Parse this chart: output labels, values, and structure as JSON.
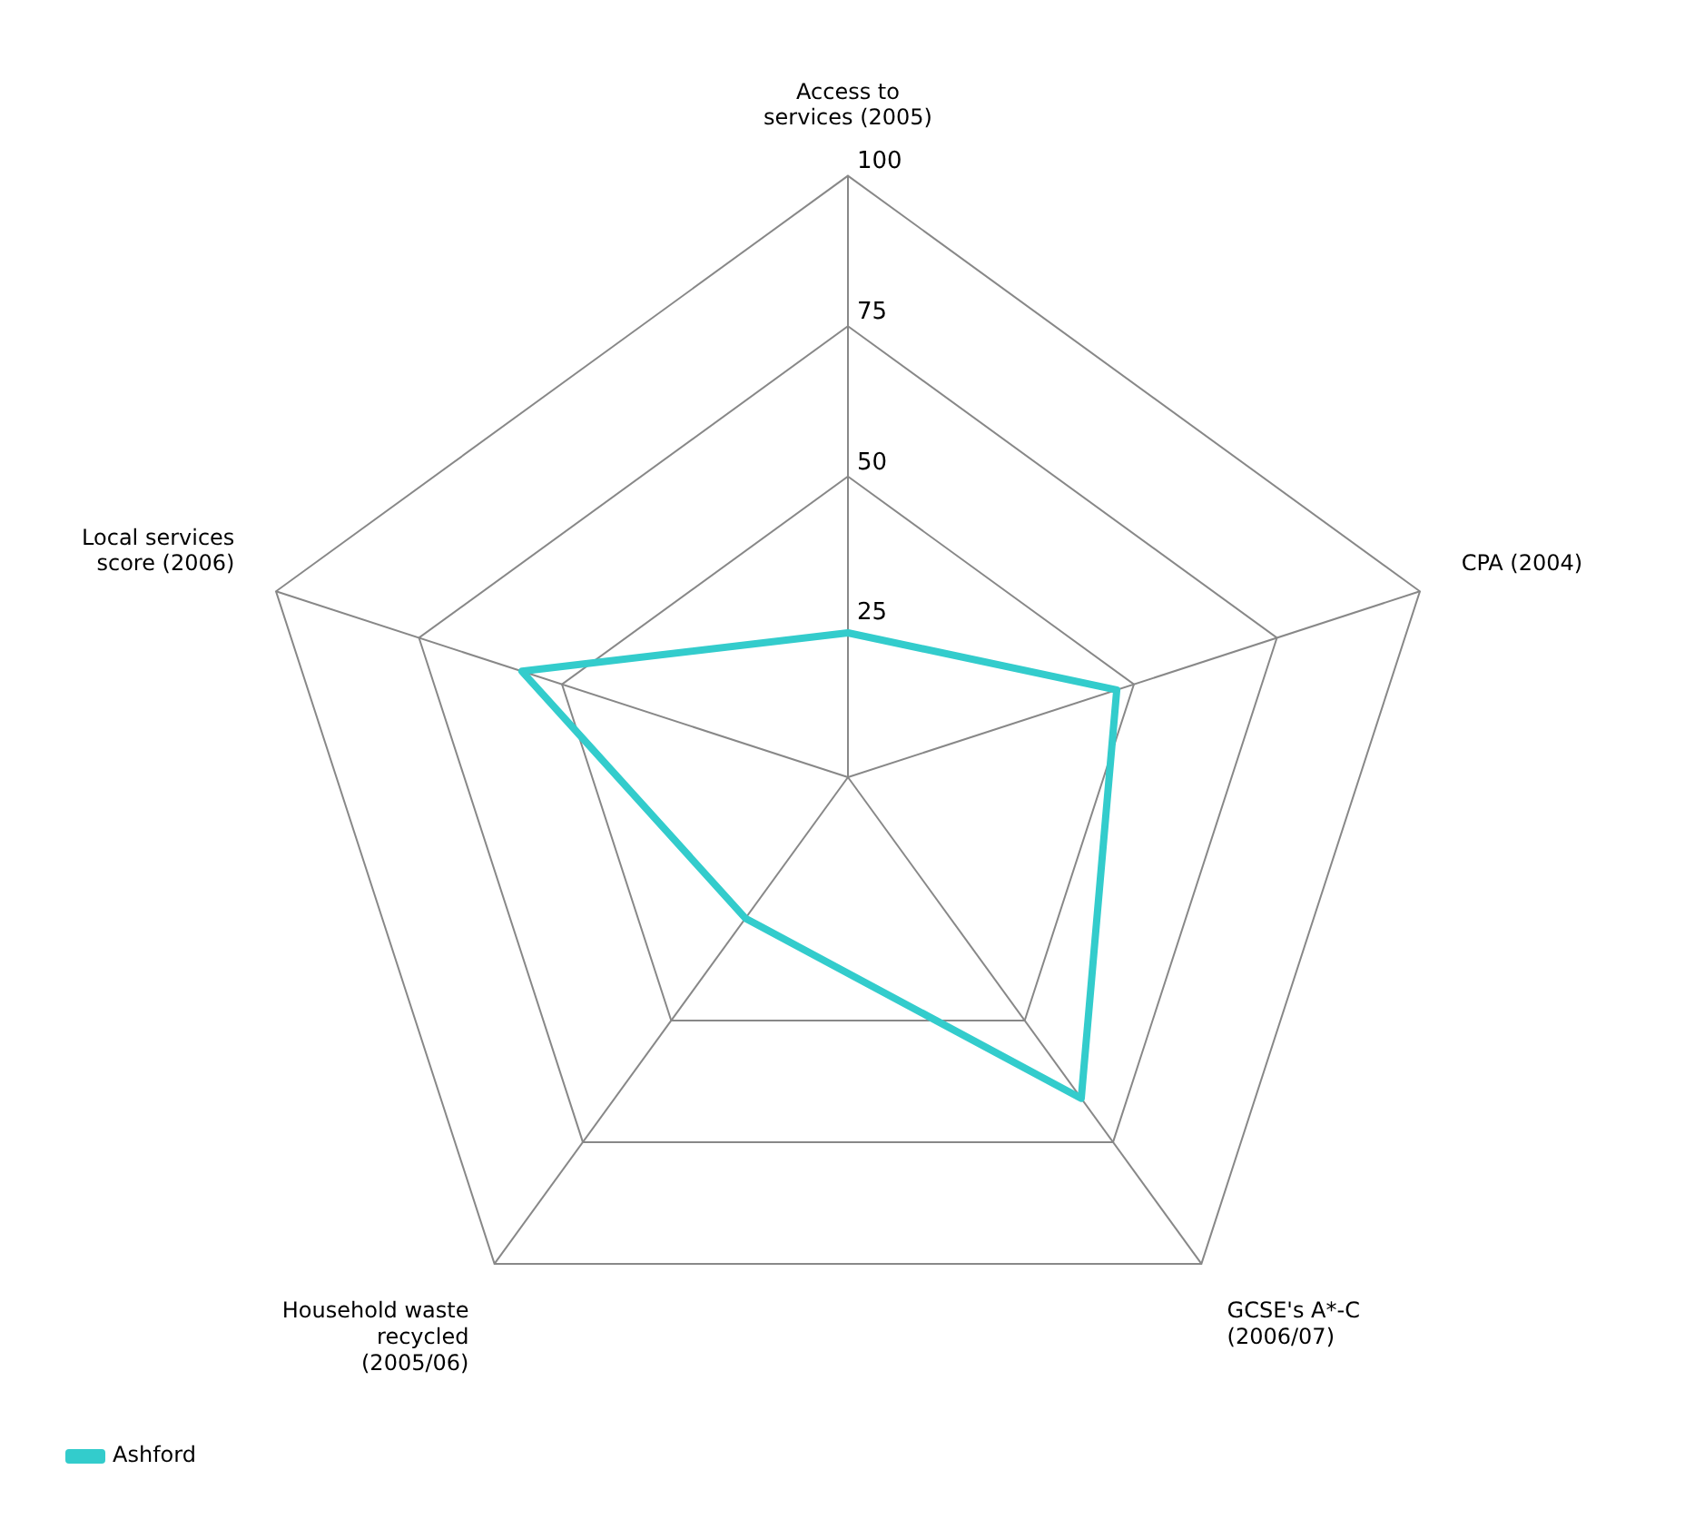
{
  "chart_data": {
    "type": "radar",
    "categories": [
      "Access to services (2005)",
      "CPA (2004)",
      "GCSE's A*-C (2006/07)",
      "Household waste recycled (2005/06)",
      "Local services score (2006)"
    ],
    "series": [
      {
        "name": "Ashford",
        "color": "#33cccc",
        "values": [
          24,
          47,
          66,
          29,
          57
        ]
      }
    ],
    "ylim": [
      0,
      100
    ],
    "yticks": [
      25,
      50,
      75,
      100
    ],
    "grid": true,
    "legend": "bottom left",
    "marker": "none"
  }
}
